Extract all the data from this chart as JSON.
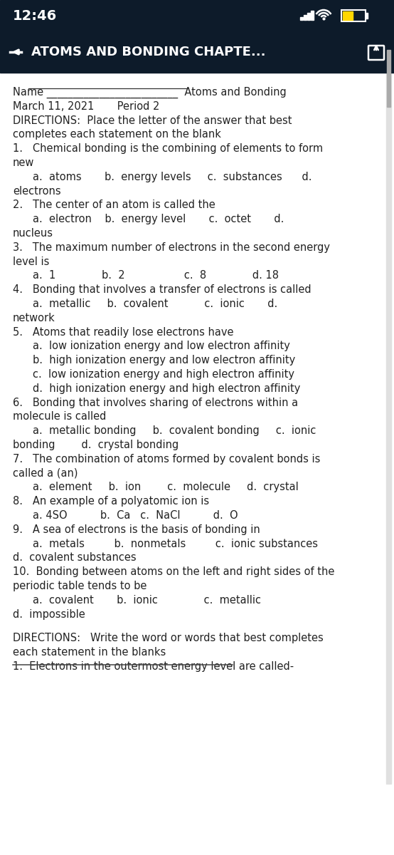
{
  "status_bar_bg": "#0d1b2a",
  "status_bar_text_color": "#ffffff",
  "status_time": "12:46",
  "nav_bar_bg": "#0d1b2a",
  "nav_bar_title": "ATOMS AND BONDING CHAPTE...",
  "content_bg": "#ffffff",
  "content_text_color": "#222222",
  "scrollbar_color": "#aaaaaa",
  "lines": [
    {
      "text": "Name _________________________  Atoms and Bonding",
      "indent": 0,
      "bold": false,
      "underline_name": true
    },
    {
      "text": "March 11, 2021       Period 2",
      "indent": 0,
      "bold": false
    },
    {
      "text": "DIRECTIONS:  Place the letter of the answer that best",
      "indent": 0,
      "bold": false
    },
    {
      "text": "completes each statement on the blank",
      "indent": 0,
      "bold": false
    },
    {
      "text": "1.   Chemical bonding is the combining of elements to form",
      "indent": 0,
      "bold": false
    },
    {
      "text": "new",
      "indent": 0,
      "bold": false
    },
    {
      "text": "a.  atoms       b.  energy levels     c.  substances      d.",
      "indent": 1,
      "bold": false
    },
    {
      "text": "electrons",
      "indent": 0,
      "bold": false
    },
    {
      "text": "2.   The center of an atom is called the",
      "indent": 0,
      "bold": false
    },
    {
      "text": "a.  electron    b.  energy level       c.  octet       d.",
      "indent": 1,
      "bold": false
    },
    {
      "text": "nucleus",
      "indent": 0,
      "bold": false
    },
    {
      "text": "3.   The maximum number of electrons in the second energy",
      "indent": 0,
      "bold": false
    },
    {
      "text": "level is",
      "indent": 0,
      "bold": false
    },
    {
      "text": "a.  1              b.  2                  c.  8              d. 18",
      "indent": 1,
      "bold": false
    },
    {
      "text": "4.   Bonding that involves a transfer of electrons is called",
      "indent": 0,
      "bold": false
    },
    {
      "text": "a.  metallic     b.  covalent           c.  ionic       d.",
      "indent": 1,
      "bold": false
    },
    {
      "text": "network",
      "indent": 0,
      "bold": false
    },
    {
      "text": "5.   Atoms that readily lose electrons have",
      "indent": 0,
      "bold": false
    },
    {
      "text": "a.  low ionization energy and low electron affinity",
      "indent": 1,
      "bold": false
    },
    {
      "text": "b.  high ionization energy and low electron affinity",
      "indent": 1,
      "bold": false
    },
    {
      "text": "c.  low ionization energy and high electron affinity",
      "indent": 1,
      "bold": false
    },
    {
      "text": "d.  high ionization energy and high electron affinity",
      "indent": 1,
      "bold": false
    },
    {
      "text": "6.   Bonding that involves sharing of electrons within a",
      "indent": 0,
      "bold": false
    },
    {
      "text": "molecule is called",
      "indent": 0,
      "bold": false
    },
    {
      "text": "a.  metallic bonding     b.  covalent bonding     c.  ionic",
      "indent": 1,
      "bold": false
    },
    {
      "text": "bonding        d.  crystal bonding",
      "indent": 0,
      "bold": false
    },
    {
      "text": "7.   The combination of atoms formed by covalent bonds is",
      "indent": 0,
      "bold": false
    },
    {
      "text": "called a (an)",
      "indent": 0,
      "bold": false
    },
    {
      "text": "a.  element     b.  ion        c.  molecule     d.  crystal",
      "indent": 1,
      "bold": false
    },
    {
      "text": "8.   An example of a polyatomic ion is",
      "indent": 0,
      "bold": false
    },
    {
      "text": "a. 4SO          b.  Ca   c.  NaCl          d.  O",
      "indent": 1,
      "bold": false
    },
    {
      "text": "9.   A sea of electrons is the basis of bonding in",
      "indent": 0,
      "bold": false
    },
    {
      "text": "a.  metals         b.  nonmetals         c.  ionic substances",
      "indent": 1,
      "bold": false
    },
    {
      "text": "d.  covalent substances",
      "indent": 0,
      "bold": false
    },
    {
      "text": "10.  Bonding between atoms on the left and right sides of the",
      "indent": 0,
      "bold": false
    },
    {
      "text": "periodic table tends to be",
      "indent": 0,
      "bold": false
    },
    {
      "text": "a.  covalent       b.  ionic              c.  metallic",
      "indent": 1,
      "bold": false
    },
    {
      "text": "d.  impossible",
      "indent": 0,
      "bold": false
    },
    {
      "text": "",
      "indent": 0,
      "bold": false
    },
    {
      "text": "DIRECTIONS:   Write the word or words that best completes",
      "indent": 0,
      "bold": false
    },
    {
      "text": "each statement in the blanks",
      "indent": 0,
      "bold": false
    },
    {
      "text": "1.  Electrons in the outermost energy level are called-",
      "indent": 0,
      "bold": false,
      "strikethrough": true
    }
  ]
}
